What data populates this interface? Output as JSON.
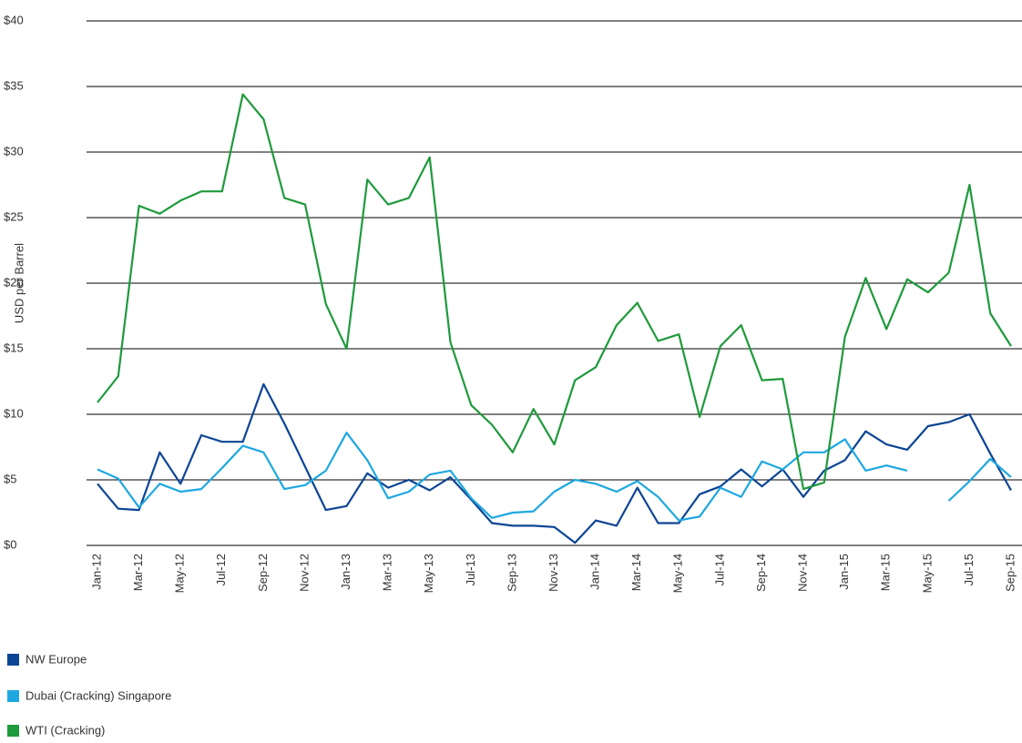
{
  "chart_data": {
    "type": "line",
    "y_label": "USD per Barrel",
    "categories": [
      "Jan-12",
      null,
      "Mar-12",
      null,
      "May-12",
      null,
      "Jul-12",
      null,
      "Sep-12",
      null,
      "Nov-12",
      null,
      "Jan-13",
      null,
      "Mar-13",
      null,
      "May-13",
      null,
      "Jul-13",
      null,
      "Sep-13",
      null,
      "Nov-13",
      null,
      "Jan-14",
      null,
      "Mar-14",
      null,
      "May-14",
      null,
      "Jul-14",
      null,
      "Sep-14",
      null,
      "Nov-14",
      null,
      "Jan-15",
      null,
      "Mar-15",
      null,
      "May-15",
      null,
      "Jul-15",
      null,
      "Sep-15"
    ],
    "series": [
      {
        "name": "NW Europe",
        "color": "#0c4594",
        "values": [
          4.7,
          2.8,
          2.7,
          7.1,
          4.7,
          8.4,
          7.9,
          7.9,
          12.3,
          9.3,
          6.0,
          2.7,
          3.0,
          5.5,
          4.4,
          5.0,
          4.2,
          5.2,
          3.5,
          1.7,
          1.5,
          1.5,
          1.4,
          0.2,
          1.9,
          1.5,
          4.4,
          1.7,
          1.7,
          3.9,
          4.5,
          5.8,
          4.5,
          5.8,
          3.7,
          5.7,
          6.5,
          8.7,
          7.7,
          7.3,
          9.1,
          9.4,
          10.0,
          7.0,
          4.2
        ]
      },
      {
        "name": "Dubai  (Cracking) Singapore",
        "color": "#1ea8e0",
        "values": [
          5.8,
          5.1,
          2.9,
          4.7,
          4.1,
          4.3,
          5.9,
          7.6,
          7.1,
          4.3,
          4.6,
          5.7,
          8.6,
          6.5,
          3.6,
          4.1,
          5.4,
          5.7,
          3.6,
          2.1,
          2.5,
          2.6,
          4.1,
          5.0,
          4.7,
          4.1,
          4.9,
          3.7,
          1.9,
          2.2,
          4.4,
          3.7,
          6.4,
          5.8,
          7.1,
          7.1,
          8.1,
          5.7,
          6.1,
          5.7,
          null,
          3.4,
          4.9,
          6.6,
          5.2
        ]
      },
      {
        "name": "WTI  (Cracking)",
        "color": "#1f9a3c",
        "values": [
          10.9,
          12.9,
          25.9,
          25.3,
          26.3,
          27.0,
          27.0,
          34.4,
          32.5,
          26.5,
          26.0,
          18.4,
          15.0,
          27.9,
          26.0,
          26.5,
          29.6,
          15.5,
          10.7,
          9.2,
          7.1,
          10.4,
          7.7,
          12.6,
          13.6,
          16.8,
          18.5,
          15.6,
          16.1,
          9.8,
          15.2,
          16.8,
          12.6,
          12.7,
          4.3,
          4.8,
          15.9,
          20.4,
          16.5,
          20.3,
          19.3,
          20.8,
          27.5,
          17.7,
          15.2
        ]
      }
    ],
    "ylim": [
      0,
      40
    ],
    "yticks": [
      {
        "value": 0,
        "label": "$0"
      },
      {
        "value": 5,
        "label": "$5"
      },
      {
        "value": 10,
        "label": "$10"
      },
      {
        "value": 15,
        "label": "$15"
      },
      {
        "value": 20,
        "label": "$20"
      },
      {
        "value": 25,
        "label": "$25"
      },
      {
        "value": 30,
        "label": "$30"
      },
      {
        "value": 35,
        "label": "$35"
      },
      {
        "value": 40,
        "label": "$40"
      }
    ],
    "grid": true
  }
}
